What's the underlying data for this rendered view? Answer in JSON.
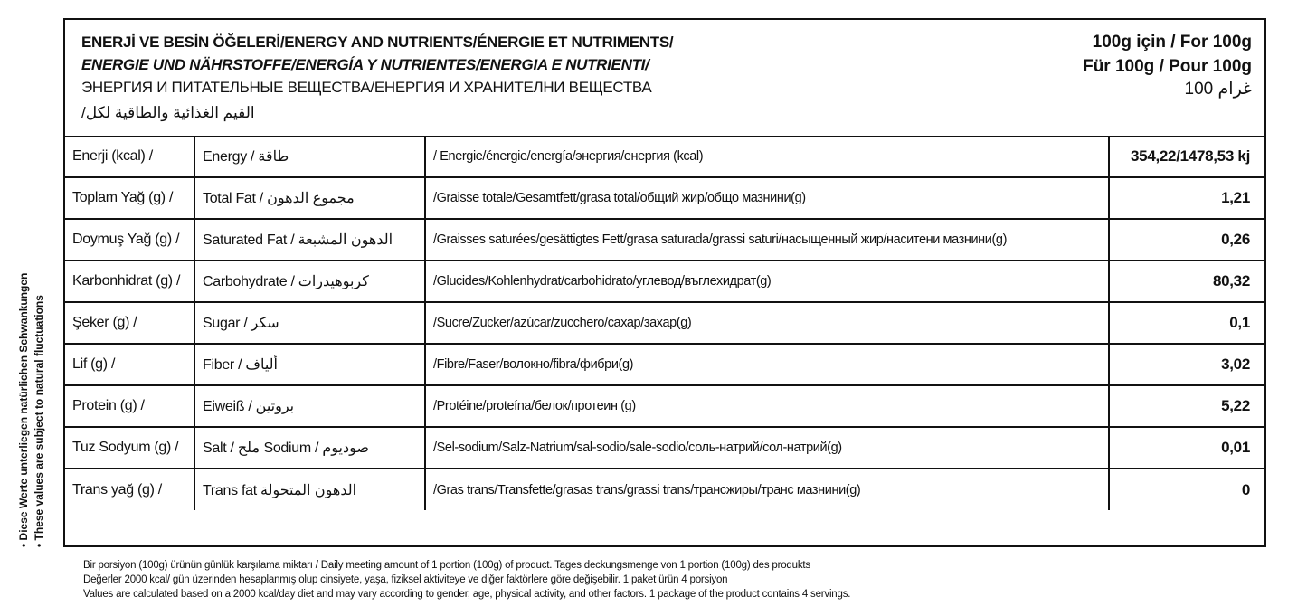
{
  "header": {
    "line_tr_en_fr": "ENERJİ VE BESİN ÖĞELERİ/ENERGY AND NUTRIENTS/ÉNERGIE ET NUTRIMENTS/",
    "line_de_es_it": "ENERGIE UND NÄHRSTOFFE/ENERGÍA Y NUTRIENTES/ENERGIA E NUTRIENTI/",
    "line_ru_bg": "ЭНЕРГИЯ И ПИТАТЕЛЬНЫЕ ВЕЩЕСТВА/ЕНЕРГИЯ И ХРАНИТЕЛНИ ВЕЩЕСТВА",
    "line_ar": "القيم الغذائية والطاقية لكل/",
    "per_tr_en": "100g için / For 100g",
    "per_de_fr": "Für 100g / Pour 100g",
    "per_ar": "100 غرام"
  },
  "rows": [
    {
      "tr": "Enerji (kcal) /",
      "en_ar": "Energy / طاقة",
      "other": "/ Energie/énergie/energía/энергия/енергия (kcal)",
      "value": "354,22/1478,53 kj"
    },
    {
      "tr": "Toplam Yağ (g) /",
      "en_ar": "Total Fat / مجموع الدهون",
      "other": "/Graisse totale/Gesamtfett/grasa total/общий жир/общо мазнини(g)",
      "value": "1,21"
    },
    {
      "tr": "Doymuş Yağ (g) /",
      "en_ar": "Saturated Fat / الدهون المشبعة",
      "other": "/Graisses saturées/gesättigtes Fett/grasa saturada/grassi saturi/насыщенный жир/наситени мазнини(g)",
      "value": "0,26"
    },
    {
      "tr": "Karbonhidrat (g) /",
      "en_ar": "Carbohydrate / كربوهيدرات",
      "other": "/Glucides/Kohlenhydrat/carbohidrato/углевод/въглехидрат(g)",
      "value": "80,32"
    },
    {
      "tr": "Şeker (g) /",
      "en_ar": "Sugar / سكر",
      "other": "/Sucre/Zucker/azúcar/zucchero/сахар/захар(g)",
      "value": "0,1"
    },
    {
      "tr": "Lif (g) /",
      "en_ar": "Fiber / ألياف",
      "other": "/Fibre/Faser/волокно/fibra/фибри(g)",
      "value": "3,02"
    },
    {
      "tr": "Protein (g) /",
      "en_ar": "Eiweiß / بروتين",
      "other": "/Protéine/proteína/белок/протеин (g)",
      "value": "5,22"
    },
    {
      "tr": "Tuz  Sodyum (g) /",
      "en_ar": "Salt / ملح  Sodium / صوديوم",
      "other": "/Sel-sodium/Salz-Natrium/sal-sodio/sale-sodio/соль-натрий/сол-натрий(g)",
      "value": "0,01"
    },
    {
      "tr": "Trans yağ  (g) /",
      "en_ar": "Trans fat  الدهون المتحولة",
      "other": "/Gras trans/Transfette/grasas trans/grassi trans/трансжиры/транс мазнини(g)",
      "value": "0"
    }
  ],
  "side_note": {
    "de": "• Diese Werte unterliegen natürlichen Schwankungen",
    "en": "• These values are subject to natural fluctuations"
  },
  "footer": {
    "line1": "Bir porsiyon (100g) ürünün günlük karşılama miktarı / Daily meeting amount of 1 portion (100g) of product. Tages deckungsmenge von 1 portion (100g) des produkts",
    "line2": "Değerler 2000 kcal/ gün üzerinden hesaplanmış olup cinsiyete, yaşa, fiziksel aktiviteye ve diğer faktörlere göre değişebilir. 1 paket ürün 4 porsiyon",
    "line3": "Values are calculated based on a 2000 kcal/day diet and may vary according to gender, age, physical activity, and other factors. 1 package of the product contains 4 servings."
  }
}
